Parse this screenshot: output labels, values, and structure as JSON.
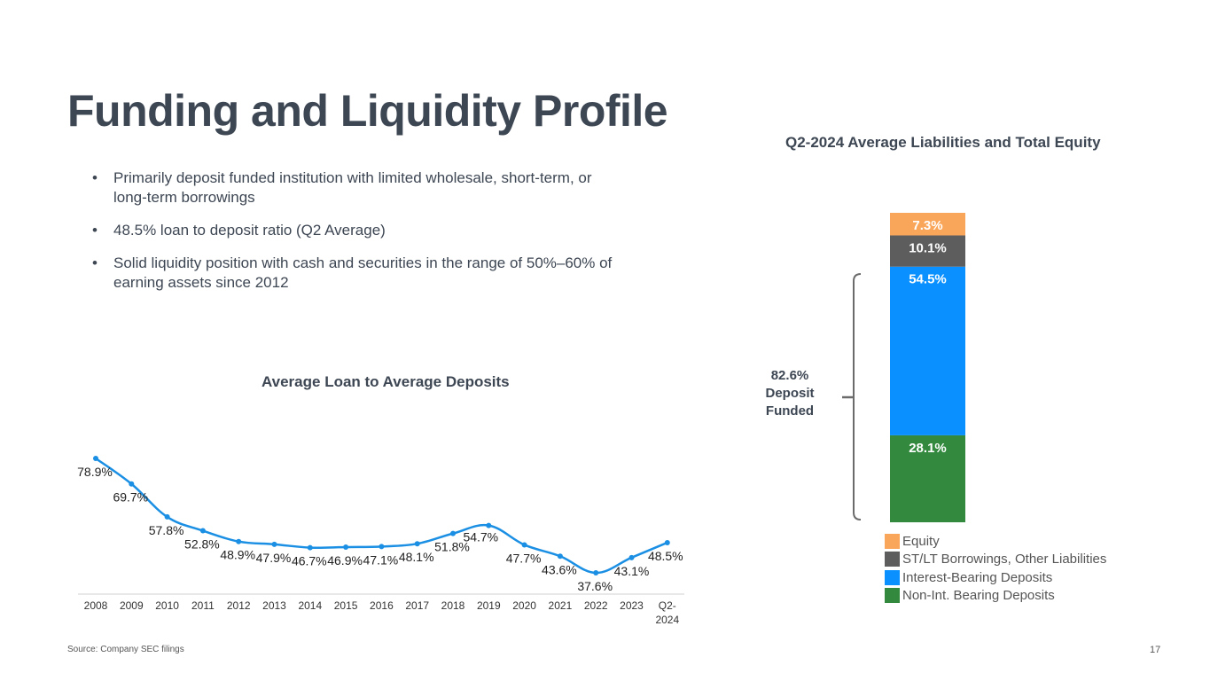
{
  "slide": {
    "title": "Funding and Liquidity Profile",
    "bullets": [
      "Primarily deposit funded institution with limited wholesale, short-term, or long-term borrowings",
      "48.5% loan to deposit ratio (Q2 Average)",
      "Solid liquidity position with cash and securities in the range of 50%–60% of earning assets since 2012"
    ],
    "bullet_glyph": "•",
    "source": "Source: Company SEC filings",
    "page_number": "17"
  },
  "chart_data": [
    {
      "type": "line",
      "title": "Average Loan to Average Deposits",
      "xlabel": "",
      "ylabel": "",
      "categories": [
        "2008",
        "2009",
        "2010",
        "2011",
        "2012",
        "2013",
        "2014",
        "2015",
        "2016",
        "2017",
        "2018",
        "2019",
        "2020",
        "2021",
        "2022",
        "2023",
        "Q2-2024"
      ],
      "category_lines": [
        [
          "2008"
        ],
        [
          "2009"
        ],
        [
          "2010"
        ],
        [
          "2011"
        ],
        [
          "2012"
        ],
        [
          "2013"
        ],
        [
          "2014"
        ],
        [
          "2015"
        ],
        [
          "2016"
        ],
        [
          "2017"
        ],
        [
          "2018"
        ],
        [
          "2019"
        ],
        [
          "2020"
        ],
        [
          "2021"
        ],
        [
          "2022"
        ],
        [
          "2023"
        ],
        [
          "Q2-",
          "2024"
        ]
      ],
      "values": [
        78.9,
        69.7,
        57.8,
        52.8,
        48.9,
        47.9,
        46.7,
        46.9,
        47.1,
        48.1,
        51.8,
        54.7,
        47.7,
        43.6,
        37.6,
        43.1,
        48.5
      ],
      "data_labels": [
        "78.9%",
        "69.7%",
        "57.8%",
        "52.8%",
        "48.9%",
        "47.9%",
        "46.7%",
        "46.9%",
        "47.1%",
        "48.1%",
        "51.8%",
        "54.7%",
        "47.7%",
        "43.6%",
        "37.6%",
        "43.1%",
        "48.5%"
      ],
      "ylim": [
        20,
        80
      ],
      "grid": false,
      "y_axis_visible": false,
      "line_color": "#1a8fe3",
      "smooth": true
    },
    {
      "type": "bar",
      "stacked": true,
      "title": "Q2-2024 Average Liabilities and Total Equity",
      "categories": [
        "Q2-2024"
      ],
      "series": [
        {
          "name": "Non-Int. Bearing Deposits",
          "values": [
            28.1
          ],
          "label": "28.1%",
          "color": "#338a3e"
        },
        {
          "name": "Interest-Bearing Deposits",
          "values": [
            54.5
          ],
          "label": "54.5%",
          "color": "#0a91ff"
        },
        {
          "name": "ST/LT Borrowings, Other Liabilities",
          "values": [
            10.1
          ],
          "label": "10.1%",
          "color": "#5d5d5d"
        },
        {
          "name": "Equity",
          "values": [
            7.3
          ],
          "label": "7.3%",
          "color": "#f9a65a"
        }
      ],
      "legend_order": [
        "Equity",
        "ST/LT Borrowings, Other Liabilities",
        "Interest-Bearing Deposits",
        "Non-Int. Bearing Deposits"
      ],
      "legend_placement": "bottom",
      "annotation": {
        "lines": [
          "82.6%",
          "Deposit",
          "Funded"
        ],
        "spans": [
          "Non-Int. Bearing Deposits",
          "Interest-Bearing Deposits"
        ]
      },
      "ylim": [
        0,
        100
      ]
    }
  ]
}
